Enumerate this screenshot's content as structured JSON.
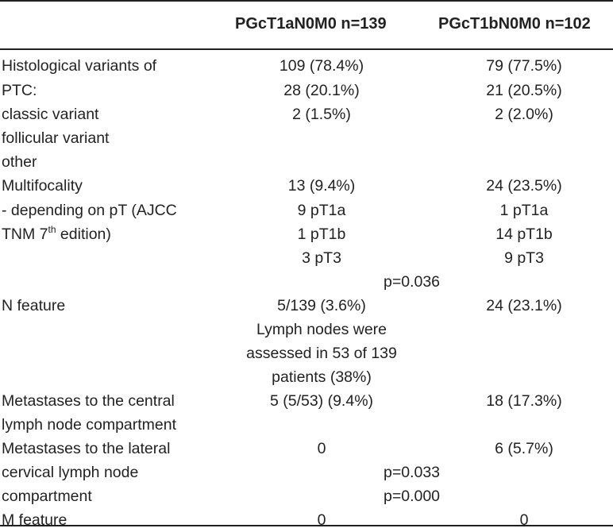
{
  "header": {
    "col1": "PGcT1aN0M0 n=139",
    "col2": "PGcT1bN0M0 n=102"
  },
  "rows": {
    "histology": {
      "label_lines": [
        "Histological variants of",
        "PTC:",
        "classic variant",
        "follicular variant",
        "other"
      ],
      "col1": [
        "109 (78.4%)",
        "28 (20.1%)",
        "2 (1.5%)"
      ],
      "col2": [
        "79 (77.5%)",
        "21 (20.5%)",
        "2 (2.0%)"
      ]
    },
    "multifocality": {
      "label_lines": [
        "Multifocality",
        "- depending on pT (AJCC",
        "TNM 7",
        "th",
        " edition)"
      ],
      "col1": [
        "13 (9.4%)",
        "9 pT1a",
        "1 pT1b",
        "3 pT3"
      ],
      "col2": [
        "24 (23.5%)",
        "1 pT1a",
        "14 pT1b",
        "9 pT3"
      ],
      "p_value": "p=0.036"
    },
    "n_feature": {
      "label": "N feature",
      "col1": [
        "5/139 (3.6%)",
        "Lymph nodes were",
        "assessed in 53 of 139",
        "patients (38%)"
      ],
      "col2": "24 (23.1%)"
    },
    "central": {
      "label_lines": [
        "Metastases to the central",
        "lymph node compartment"
      ],
      "col1": "5 (5/53) (9.4%)",
      "col2": "18 (17.3%)"
    },
    "lateral": {
      "label_lines": [
        "Metastases to the lateral",
        "cervical lymph node",
        "compartment"
      ],
      "col1": "0",
      "col2": "6 (5.7%)",
      "p_values": [
        "p=0.033",
        "p=0.000"
      ]
    },
    "m_feature": {
      "label": "M feature",
      "col1": "0",
      "col2": "0"
    }
  }
}
